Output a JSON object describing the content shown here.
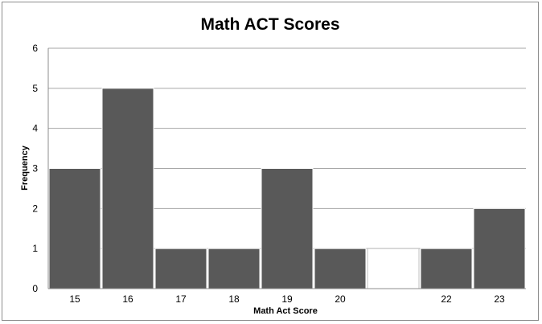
{
  "chart_data": {
    "type": "bar",
    "title": "Math ACT Scores",
    "xlabel": "Math Act Score",
    "ylabel": "Frequency",
    "ylim": [
      0,
      6
    ],
    "yticks": [
      "0",
      "1",
      "2",
      "3",
      "4",
      "5",
      "6"
    ],
    "grid": true,
    "legend": "none",
    "categories": [
      "15",
      "16",
      "17",
      "18",
      "19",
      "20",
      "",
      "22",
      "23"
    ],
    "values": [
      3,
      5,
      1,
      1,
      3,
      1,
      1,
      1,
      2
    ],
    "bar_colors": [
      "#595959",
      "#595959",
      "#595959",
      "#595959",
      "#595959",
      "#595959",
      "#ffffff",
      "#595959",
      "#595959"
    ],
    "bar_edge": "#ffffff",
    "gridline_color": "#a6a6a6"
  }
}
